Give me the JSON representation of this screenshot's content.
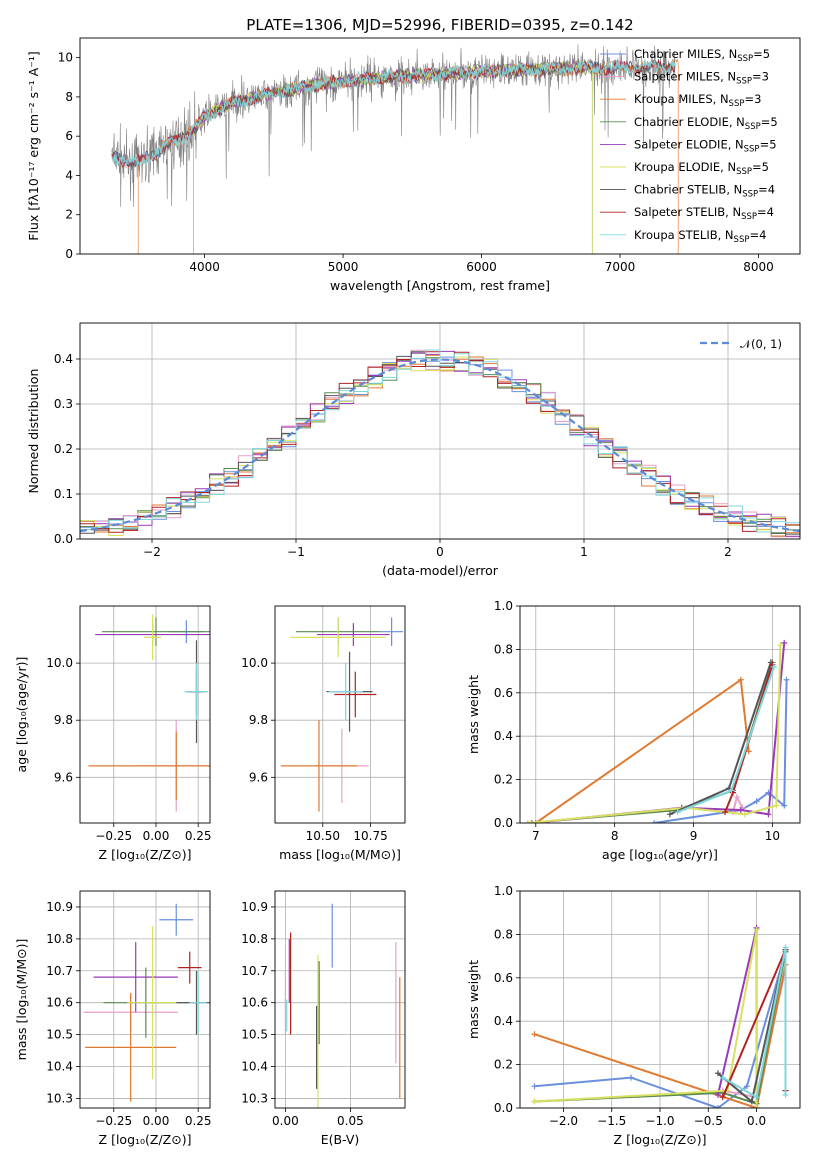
{
  "title": "PLATE=1306, MJD=52996, FIBERID=0395, z=0.142",
  "colors": {
    "chabrier_miles": "#6a8fdc",
    "salpeter_miles": "#e8a0c8",
    "kroupa_miles": "#e07a30",
    "chabrier_elodie": "#5a8a50",
    "salpeter_elodie": "#9a3ab8",
    "kroupa_elodie": "#d8e060",
    "chabrier_stelib": "#555555",
    "salpeter_stelib": "#b22222",
    "kroupa_stelib": "#7fd6dc",
    "data_gray": "#808080",
    "normal": "#5a8ad8"
  },
  "chart_data": [
    {
      "type": "line",
      "name": "spectrum",
      "xlabel": "wavelength [Angstrom, rest frame]",
      "ylabel": "Flux [fλ10⁻¹⁷ erg cm⁻² s⁻¹ A⁻¹]",
      "xlim": [
        3100,
        8300
      ],
      "ylim": [
        0,
        11
      ],
      "xticks": [
        "4000",
        "5000",
        "6000",
        "7000",
        "8000"
      ],
      "yticks": [
        "0",
        "2",
        "4",
        "6",
        "8",
        "10"
      ],
      "continuum_x": [
        3330,
        3500,
        3700,
        3900,
        4000,
        4200,
        4500,
        4800,
        5000,
        5300,
        5600,
        6000,
        6400,
        6800,
        7100,
        7400
      ],
      "continuum_y": [
        5.0,
        4.6,
        5.4,
        6.2,
        7.0,
        7.7,
        8.2,
        8.6,
        8.8,
        9.0,
        9.1,
        9.3,
        9.4,
        9.5,
        9.5,
        9.6
      ],
      "legend_labels": [
        "Chabrier MILES, N_SSP=5",
        "Salpeter MILES, N_SSP=3",
        "Kroupa MILES, N_SSP=3",
        "Chabrier ELODIE, N_SSP=5",
        "Salpeter ELODIE, N_SSP=5",
        "Kroupa ELODIE, N_SSP=5",
        "Chabrier STELIB, N_SSP=4",
        "Salpeter STELIB, N_SSP=4",
        "Kroupa STELIB, N_SSP=4"
      ]
    },
    {
      "type": "line",
      "name": "residual histogram",
      "xlabel": "(data-model)/error",
      "ylabel": "Normed distribution",
      "xlim": [
        -2.5,
        2.5
      ],
      "ylim": [
        0,
        0.48
      ],
      "xticks": [
        "−2",
        "−1",
        "0",
        "1",
        "2"
      ],
      "yticks": [
        "0.0",
        "0.1",
        "0.2",
        "0.3",
        "0.4"
      ],
      "legend": "𝒩(0, 1)",
      "bin_width": 0.1
    },
    {
      "type": "scatter",
      "name": "Z vs age",
      "xlabel": "Z [log₁₀(Z/Z⊙)]",
      "ylabel": "age  [log₁₀(age/yr)]",
      "xlim": [
        -0.45,
        0.32
      ],
      "ylim": [
        9.44,
        10.2
      ],
      "xticks": [
        "−0.25",
        "0.00",
        "0.25"
      ],
      "yticks": [
        "9.6",
        "9.8",
        "10.0"
      ]
    },
    {
      "type": "scatter",
      "name": "mass vs age",
      "xlabel": "mass [log₁₀(M/M⊙)]",
      "ylabel": "",
      "xlim": [
        10.25,
        10.93
      ],
      "ylim": [
        9.44,
        10.2
      ],
      "xticks": [
        "10.50",
        "10.75"
      ],
      "yticks": [
        "9.6",
        "9.8",
        "10.0"
      ]
    },
    {
      "type": "line",
      "name": "age vs mass weight",
      "xlabel": "age  [log₁₀(age/yr)]",
      "ylabel": "mass weight",
      "xlim": [
        6.8,
        10.35
      ],
      "ylim": [
        0,
        1
      ],
      "xticks": [
        "7",
        "8",
        "9",
        "10"
      ],
      "yticks": [
        "0.0",
        "0.2",
        "0.4",
        "0.6",
        "0.8",
        "1.0"
      ]
    },
    {
      "type": "scatter",
      "name": "Z vs mass",
      "xlabel": "Z [log₁₀(Z/Z⊙)]",
      "ylabel": "mass [log₁₀(M/M⊙)]",
      "xlim": [
        -0.45,
        0.32
      ],
      "ylim": [
        10.27,
        10.95
      ],
      "xticks": [
        "−0.25",
        "0.00",
        "0.25"
      ],
      "yticks": [
        "10.3",
        "10.4",
        "10.5",
        "10.6",
        "10.7",
        "10.8",
        "10.9"
      ]
    },
    {
      "type": "scatter",
      "name": "E(B-V) vs mass",
      "xlabel": "E(B-V)",
      "ylabel": "",
      "xlim": [
        -0.008,
        0.092
      ],
      "ylim": [
        10.27,
        10.95
      ],
      "xticks": [
        "0.00",
        "0.05"
      ],
      "yticks": [
        "10.3",
        "10.4",
        "10.5",
        "10.6",
        "10.7",
        "10.8",
        "10.9"
      ]
    },
    {
      "type": "line",
      "name": "Z vs mass weight",
      "xlabel": "Z [log₁₀(Z/Z⊙)]",
      "ylabel": "mass weight",
      "xlim": [
        -2.45,
        0.45
      ],
      "ylim": [
        0,
        1
      ],
      "xticks": [
        "−2.0",
        "−1.5",
        "−1.0",
        "−0.5",
        "0.0"
      ],
      "yticks": [
        "0.0",
        "0.2",
        "0.4",
        "0.6",
        "0.8",
        "1.0"
      ]
    }
  ]
}
